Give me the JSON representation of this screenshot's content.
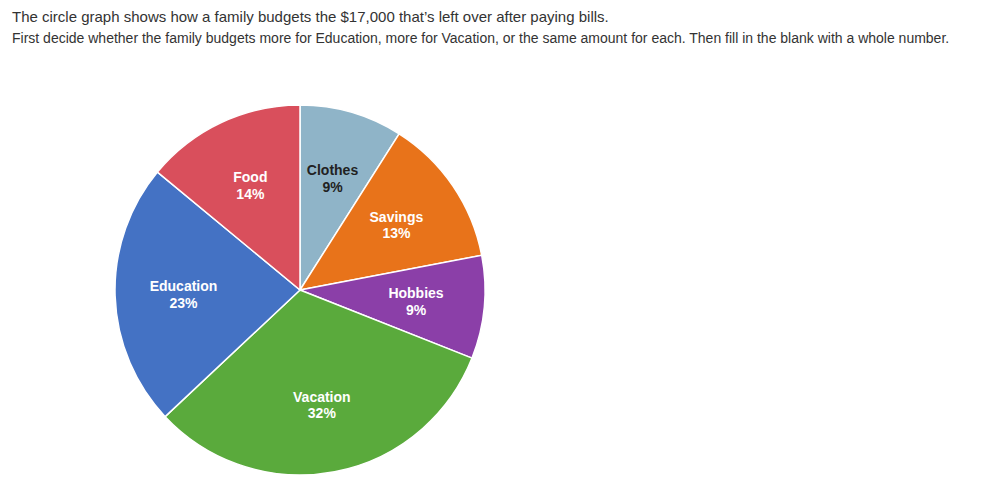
{
  "chart_data": {
    "type": "pie",
    "title": "The circle graph shows how a family budgets the $17,000 that’s left over after paying bills.",
    "subtitle": "First decide whether the family budgets more for Education, more for Vacation, or the same amount for each. Then fill in the blank with a whole number.",
    "categories": [
      "Clothes",
      "Savings",
      "Hobbies",
      "Vacation",
      "Education",
      "Food"
    ],
    "values": [
      9,
      13,
      9,
      32,
      23,
      14
    ],
    "value_labels": [
      "9%",
      "13%",
      "9%",
      "32%",
      "23%",
      "14%"
    ],
    "colors": [
      "#8fb4c8",
      "#e8731a",
      "#8b3fa8",
      "#5aaa3c",
      "#4472c4",
      "#d94f5c"
    ],
    "data_labels": true
  }
}
